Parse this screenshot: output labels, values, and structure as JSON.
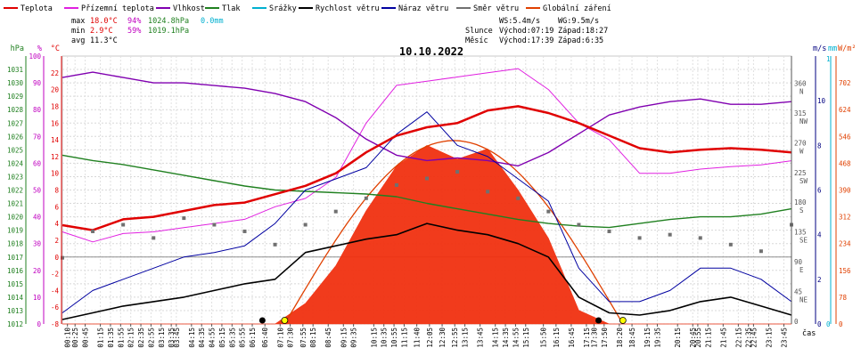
{
  "legend": [
    {
      "label": "Teplota",
      "color": "#e00000"
    },
    {
      "label": "Přízemní teplota",
      "color": "#e020e0"
    },
    {
      "label": "Vlhkost",
      "color": "#8000b0"
    },
    {
      "label": "Tlak",
      "color": "#208020"
    },
    {
      "label": "Srážky",
      "color": "#00b0d0"
    },
    {
      "label": "Rychlost větru",
      "color": "#000000"
    },
    {
      "label": "Náraz větru",
      "color": "#0000a0"
    },
    {
      "label": "Směr větru",
      "color": "#707070"
    },
    {
      "label": "Globální záření",
      "color": "#e04000"
    }
  ],
  "stats": {
    "max": {
      "label": "max",
      "temp": "18.0°C",
      "hum": "94%",
      "press": "1024.8hPa",
      "rain": "0.0mm"
    },
    "min": {
      "label": "min",
      "temp": "2.9°C",
      "hum": "59%",
      "press": "1019.1hPa"
    },
    "avg": {
      "label": "avg",
      "temp": "11.3°C"
    }
  },
  "wind_info": {
    "ws": "WS:5.4m/s",
    "wg": "WG:9.5m/s",
    "sun_label": "Slunce",
    "sun_rise": "Východ:07:19",
    "sun_set": "Západ:18:27",
    "moon_label": "Měsíc",
    "moon_rise": "Východ:17:39",
    "moon_set": "Západ:6:35"
  },
  "date": "10.10.2022",
  "axes": {
    "hpa_unit": "hPa",
    "pct_unit": "%",
    "c_unit": "°C",
    "ms_unit": "m/s",
    "mm_unit": "mm",
    "wm2_unit": "W/m²",
    "x_unit": "čas",
    "hpa_ticks": [
      "1031",
      "1030",
      "1029",
      "1028",
      "1027",
      "1026",
      "1025",
      "1024",
      "1023",
      "1022",
      "1021",
      "1020",
      "1019",
      "1018",
      "1017",
      "1016",
      "1015",
      "1014",
      "1013",
      "1012"
    ],
    "pct_ticks": [
      "100",
      "90",
      "80",
      "70",
      "60",
      "50",
      "40",
      "30",
      "20",
      "10",
      "0"
    ],
    "c_ticks": [
      "22",
      "20",
      "18",
      "16",
      "14",
      "12",
      "10",
      "8",
      "6",
      "4",
      "2",
      "0",
      "-2",
      "-4",
      "-6",
      "-8"
    ],
    "dir_ticks": [
      {
        "deg": "360",
        "card": "N"
      },
      {
        "deg": "315",
        "card": "NW"
      },
      {
        "deg": "270",
        "card": "W"
      },
      {
        "deg": "225",
        "card": "SW"
      },
      {
        "deg": "180",
        "card": "S"
      },
      {
        "deg": "135",
        "card": "SE"
      },
      {
        "deg": "90",
        "card": "E"
      },
      {
        "deg": "45",
        "card": "NE"
      },
      {
        "deg": "0",
        "card": ""
      }
    ],
    "ms_ticks": [
      "10",
      "8",
      "6",
      "4",
      "2",
      "0"
    ],
    "mm_ticks": [
      "1",
      "0"
    ],
    "wm2_ticks": [
      "702",
      "624",
      "546",
      "468",
      "390",
      "312",
      "234",
      "156",
      "78",
      "0"
    ],
    "time_ticks": [
      "00:10",
      "00:25",
      "00:45",
      "01:15",
      "01:35",
      "01:55",
      "02:15",
      "02:35",
      "02:55",
      "03:15",
      "03:35",
      "03:45",
      "04:15",
      "04:35",
      "04:55",
      "05:15",
      "05:35",
      "05:55",
      "06:15",
      "06:40",
      "07:10",
      "07:30",
      "07:55",
      "08:15",
      "08:45",
      "09:15",
      "09:35",
      "10:15",
      "10:35",
      "10:55",
      "11:15",
      "11:40",
      "12:05",
      "12:30",
      "12:55",
      "13:15",
      "13:45",
      "14:15",
      "14:35",
      "14:55",
      "15:15",
      "15:50",
      "16:15",
      "16:45",
      "17:15",
      "17:30",
      "17:50",
      "18:20",
      "18:45",
      "19:15",
      "19:35",
      "20:15",
      "20:45",
      "20:55",
      "21:15",
      "21:45",
      "22:15",
      "22:35",
      "22:45",
      "23:15",
      "23:45"
    ]
  },
  "chart_data": {
    "type": "line",
    "title": "10.10.2022",
    "x": [
      "00:00",
      "01:00",
      "02:00",
      "03:00",
      "04:00",
      "05:00",
      "06:00",
      "07:00",
      "08:00",
      "09:00",
      "10:00",
      "11:00",
      "12:00",
      "13:00",
      "14:00",
      "15:00",
      "16:00",
      "17:00",
      "18:00",
      "19:00",
      "20:00",
      "21:00",
      "22:00",
      "23:00",
      "24:00"
    ],
    "series": [
      {
        "name": "Teplota",
        "unit": "°C",
        "color": "#e00000",
        "values": [
          3.8,
          3.2,
          4.5,
          4.8,
          5.5,
          6.2,
          6.5,
          7.5,
          8.5,
          10.0,
          12.5,
          14.5,
          15.5,
          16.0,
          17.5,
          18.0,
          17.2,
          16.0,
          14.5,
          13.0,
          12.5,
          12.8,
          13.0,
          12.8,
          12.5
        ]
      },
      {
        "name": "Přízemní teplota",
        "unit": "°C",
        "color": "#e020e0",
        "values": [
          3.0,
          1.8,
          2.8,
          3.0,
          3.5,
          4.0,
          4.5,
          6.0,
          7.0,
          9.5,
          16.0,
          20.5,
          21.0,
          21.5,
          22.0,
          22.5,
          20.0,
          16.0,
          14.0,
          10.0,
          10.0,
          10.5,
          10.8,
          11.0,
          11.5
        ]
      },
      {
        "name": "Vlhkost",
        "unit": "%",
        "color": "#8000b0",
        "values": [
          92,
          94,
          92,
          90,
          90,
          89,
          88,
          86,
          83,
          77,
          69,
          63,
          61,
          62,
          61,
          59,
          64,
          71,
          78,
          81,
          83,
          84,
          82,
          82,
          83
        ]
      },
      {
        "name": "Tlak",
        "unit": "hPa",
        "color": "#208020",
        "values": [
          1024.6,
          1024.2,
          1023.9,
          1023.5,
          1023.1,
          1022.7,
          1022.3,
          1022.0,
          1021.9,
          1021.8,
          1021.7,
          1021.5,
          1021.0,
          1020.6,
          1020.2,
          1019.8,
          1019.5,
          1019.3,
          1019.2,
          1019.5,
          1019.8,
          1020.0,
          1020.0,
          1020.2,
          1020.6
        ]
      },
      {
        "name": "Srážky",
        "unit": "mm",
        "color": "#00b0d0",
        "values": [
          0,
          0,
          0,
          0,
          0,
          0,
          0,
          0,
          0,
          0,
          0,
          0,
          0,
          0,
          0,
          0,
          0,
          0,
          0,
          0,
          0,
          0,
          0,
          0,
          0
        ]
      },
      {
        "name": "Rychlost větru",
        "unit": "m/s",
        "color": "#000000",
        "values": [
          0.2,
          0.5,
          0.8,
          1.0,
          1.2,
          1.5,
          1.8,
          2.0,
          3.2,
          3.5,
          3.8,
          4.0,
          4.5,
          4.2,
          4.0,
          3.6,
          3.0,
          1.2,
          0.5,
          0.4,
          0.6,
          1.0,
          1.2,
          0.8,
          0.4
        ]
      },
      {
        "name": "Náraz větru",
        "unit": "m/s",
        "color": "#0000a0",
        "values": [
          0.5,
          1.5,
          2.0,
          2.5,
          3.0,
          3.2,
          3.5,
          4.5,
          6.0,
          6.5,
          7.0,
          8.5,
          9.5,
          8.0,
          7.5,
          6.5,
          5.5,
          2.5,
          1.0,
          1.0,
          1.5,
          2.5,
          2.5,
          2.0,
          1.0
        ]
      },
      {
        "name": "Směr větru",
        "unit": "°",
        "color": "#707070",
        "values": [
          100,
          140,
          150,
          130,
          160,
          150,
          140,
          120,
          150,
          170,
          190,
          210,
          220,
          230,
          200,
          190,
          170,
          150,
          140,
          130,
          135,
          130,
          120,
          110,
          150
        ]
      },
      {
        "name": "Globální záření",
        "unit": "W/m²",
        "color": "#e04000",
        "values": [
          0,
          0,
          0,
          0,
          0,
          0,
          0,
          0,
          60,
          170,
          330,
          460,
          520,
          480,
          510,
          390,
          250,
          40,
          0,
          0,
          0,
          0,
          0,
          0,
          0
        ]
      }
    ],
    "clear_sky_radiation": {
      "color": "#e04000",
      "peak_wm2": 534,
      "start": "07:19",
      "end": "18:27"
    },
    "ylim_temp": [
      -8,
      24
    ],
    "ylim_hum": [
      0,
      100
    ],
    "ylim_press": [
      1012,
      1032
    ],
    "ylim_wind": [
      0,
      12
    ],
    "ylim_dir": [
      0,
      405
    ],
    "ylim_rad": [
      0,
      780
    ],
    "grid": true
  }
}
